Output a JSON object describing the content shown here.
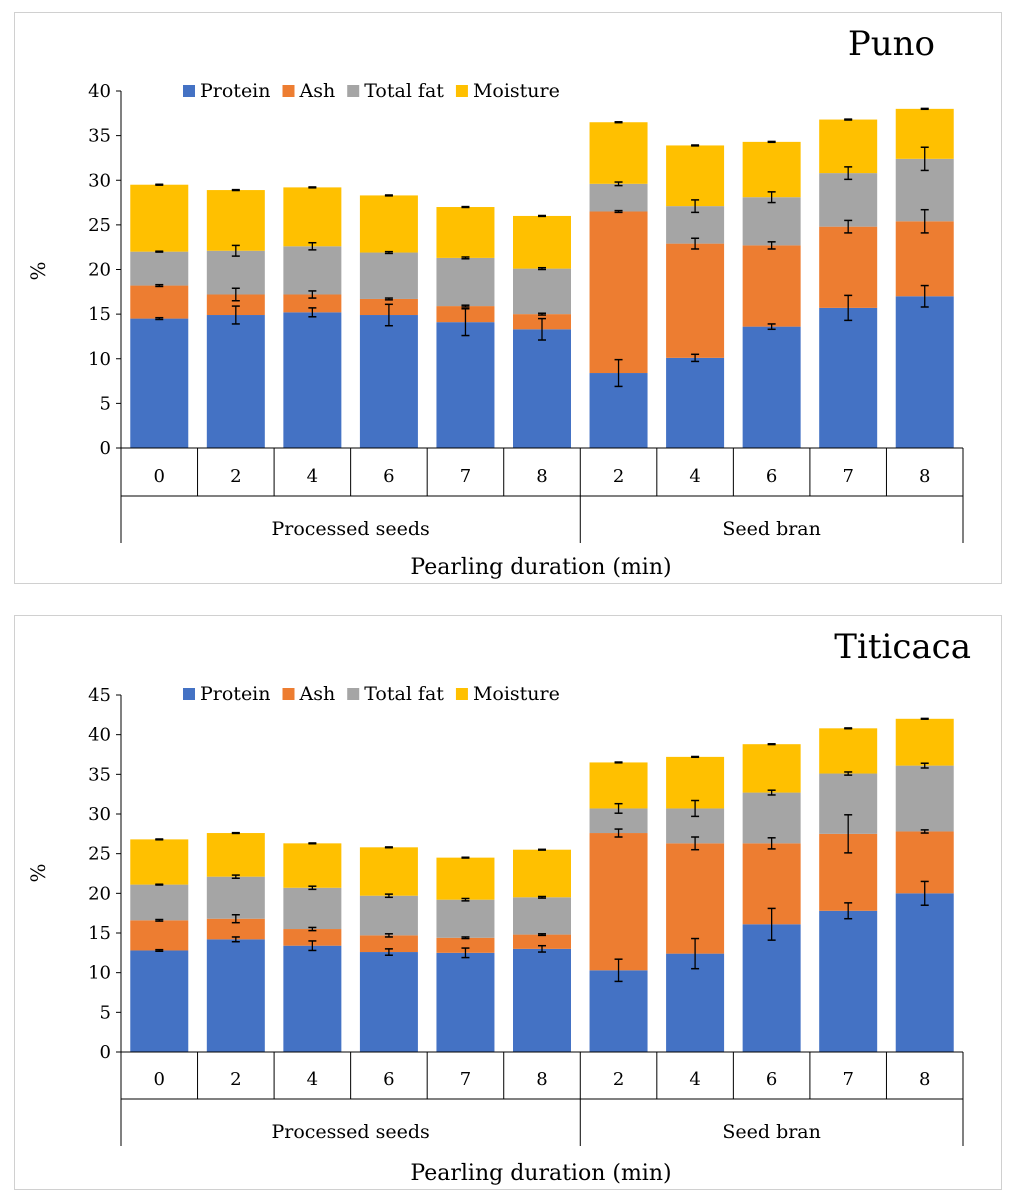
{
  "colors": {
    "protein": "#4472C4",
    "ash": "#ED7D31",
    "fat": "#A5A5A5",
    "moisture": "#FFC000"
  },
  "chart_data": [
    {
      "type": "bar",
      "stacked": true,
      "title": "Puno",
      "xlabel": "Pearling duration (min)",
      "ylabel": "%",
      "ylim": [
        0,
        40
      ],
      "yticks": [
        0,
        5,
        10,
        15,
        20,
        25,
        30,
        35,
        40
      ],
      "categories": [
        "0",
        "2",
        "4",
        "6",
        "7",
        "8",
        "2",
        "4",
        "6",
        "7",
        "8"
      ],
      "groups": [
        {
          "label": "Processed seeds",
          "span": [
            0,
            5
          ]
        },
        {
          "label": "Seed bran",
          "span": [
            6,
            10
          ]
        }
      ],
      "legend_position": "top-left",
      "series": [
        {
          "name": "Protein",
          "key": "protein",
          "values": [
            14.5,
            14.9,
            15.2,
            14.9,
            14.1,
            13.3,
            8.4,
            10.1,
            13.6,
            15.7,
            17.0
          ],
          "errors": [
            0.1,
            1.0,
            0.5,
            1.2,
            1.5,
            1.2,
            1.5,
            0.4,
            0.3,
            1.4,
            1.2
          ]
        },
        {
          "name": "Ash",
          "key": "ash",
          "values": [
            3.7,
            2.3,
            2.0,
            1.8,
            1.8,
            1.7,
            18.1,
            12.8,
            9.1,
            9.1,
            8.4
          ],
          "errors": [
            0.1,
            0.7,
            0.4,
            0.1,
            0.1,
            0.1,
            0.1,
            0.6,
            0.4,
            0.7,
            1.3
          ]
        },
        {
          "name": "Total fat",
          "key": "fat",
          "values": [
            3.8,
            4.9,
            5.4,
            5.2,
            5.4,
            5.1,
            3.1,
            4.2,
            5.4,
            6.0,
            7.0
          ],
          "errors": [
            0.05,
            0.6,
            0.4,
            0.1,
            0.1,
            0.1,
            0.2,
            0.7,
            0.6,
            0.7,
            1.3
          ]
        },
        {
          "name": "Moisture",
          "key": "moisture",
          "values": [
            7.5,
            6.8,
            6.6,
            6.4,
            5.7,
            5.9,
            6.9,
            6.8,
            6.2,
            6.0,
            5.6
          ],
          "errors": [
            0.05,
            0.05,
            0.05,
            0.05,
            0.05,
            0.05,
            0.05,
            0.05,
            0.05,
            0.05,
            0.05
          ]
        }
      ]
    },
    {
      "type": "bar",
      "stacked": true,
      "title": "Titicaca",
      "xlabel": "Pearling duration (min)",
      "ylabel": "%",
      "ylim": [
        0,
        45
      ],
      "yticks": [
        0,
        5,
        10,
        15,
        20,
        25,
        30,
        35,
        40,
        45
      ],
      "categories": [
        "0",
        "2",
        "4",
        "6",
        "7",
        "8",
        "2",
        "4",
        "6",
        "7",
        "8"
      ],
      "groups": [
        {
          "label": "Processed seeds",
          "span": [
            0,
            5
          ]
        },
        {
          "label": "Seed bran",
          "span": [
            6,
            10
          ]
        }
      ],
      "legend_position": "top-left",
      "series": [
        {
          "name": "Protein",
          "key": "protein",
          "values": [
            12.8,
            14.2,
            13.4,
            12.6,
            12.5,
            13.0,
            10.3,
            12.4,
            16.1,
            17.8,
            20.0
          ],
          "errors": [
            0.1,
            0.3,
            0.6,
            0.4,
            0.6,
            0.4,
            1.4,
            1.9,
            2.0,
            1.0,
            1.5
          ]
        },
        {
          "name": "Ash",
          "key": "ash",
          "values": [
            3.8,
            2.6,
            2.1,
            2.1,
            1.9,
            1.8,
            17.3,
            13.9,
            10.2,
            9.7,
            7.8
          ],
          "errors": [
            0.1,
            0.5,
            0.2,
            0.2,
            0.1,
            0.1,
            0.5,
            0.8,
            0.7,
            2.4,
            0.2
          ]
        },
        {
          "name": "Total fat",
          "key": "fat",
          "values": [
            4.5,
            5.3,
            5.2,
            5.0,
            4.8,
            4.7,
            3.1,
            4.4,
            6.4,
            7.6,
            8.3
          ],
          "errors": [
            0.05,
            0.2,
            0.2,
            0.2,
            0.15,
            0.1,
            0.6,
            1.0,
            0.3,
            0.2,
            0.3
          ]
        },
        {
          "name": "Moisture",
          "key": "moisture",
          "values": [
            5.7,
            5.5,
            5.6,
            6.1,
            5.3,
            6.0,
            5.8,
            6.5,
            6.1,
            5.7,
            5.9
          ],
          "errors": [
            0.05,
            0.05,
            0.05,
            0.05,
            0.05,
            0.05,
            0.05,
            0.05,
            0.05,
            0.05,
            0.05
          ]
        }
      ]
    }
  ]
}
